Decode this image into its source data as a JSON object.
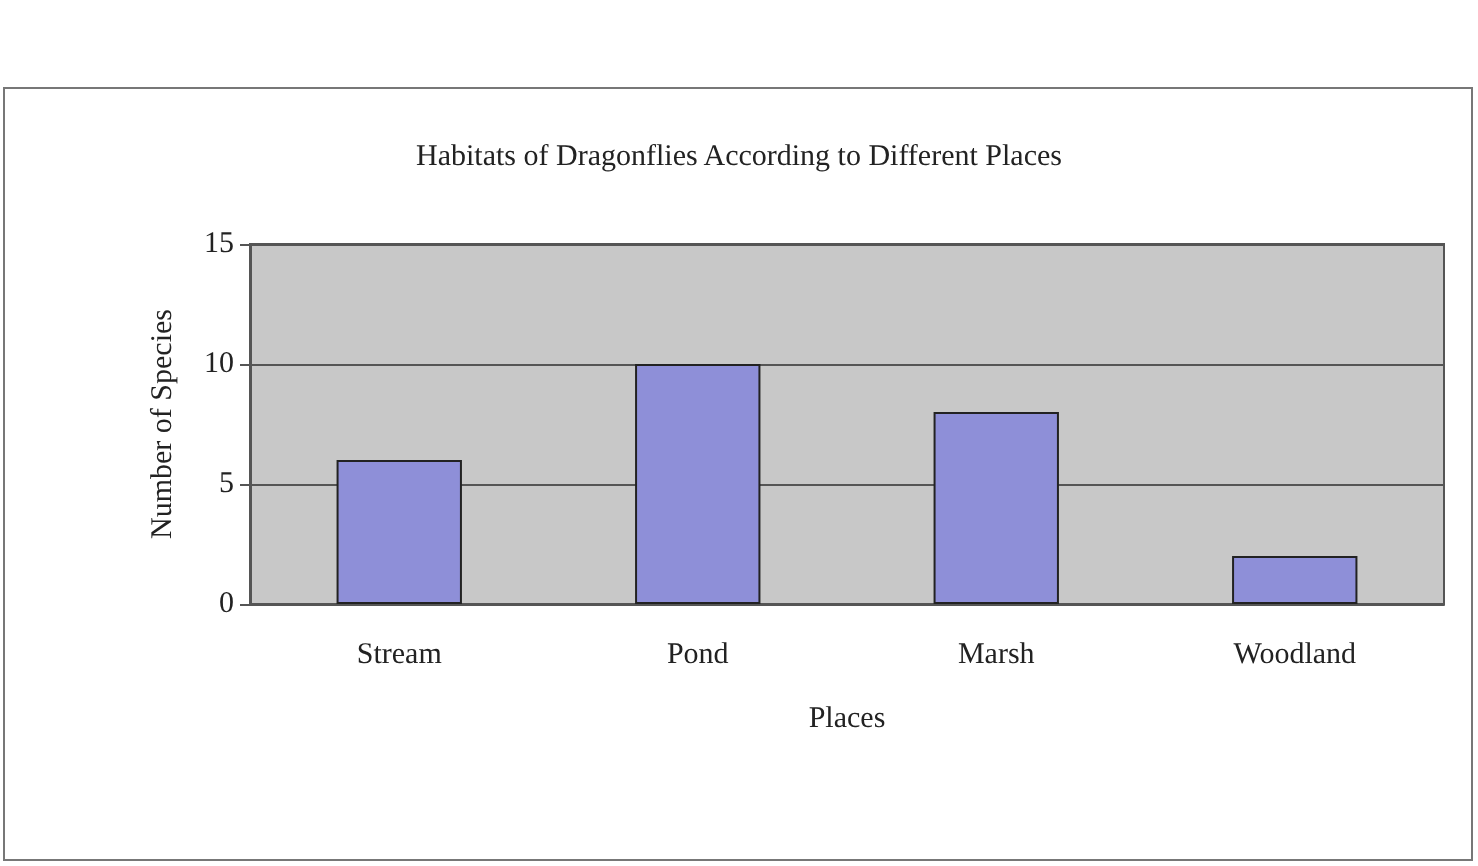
{
  "chart_data": {
    "type": "bar",
    "title": "Habitats of Dragonflies According to Different Places",
    "xlabel": "Places",
    "ylabel": "Number of Species",
    "categories": [
      "Stream",
      "Pond",
      "Marsh",
      "Woodland"
    ],
    "values": [
      6,
      10,
      8,
      2
    ],
    "color": "#8e8fd8",
    "ylim": [
      0,
      15
    ],
    "yticks": [
      0,
      5,
      10,
      15
    ],
    "grid": "y"
  }
}
